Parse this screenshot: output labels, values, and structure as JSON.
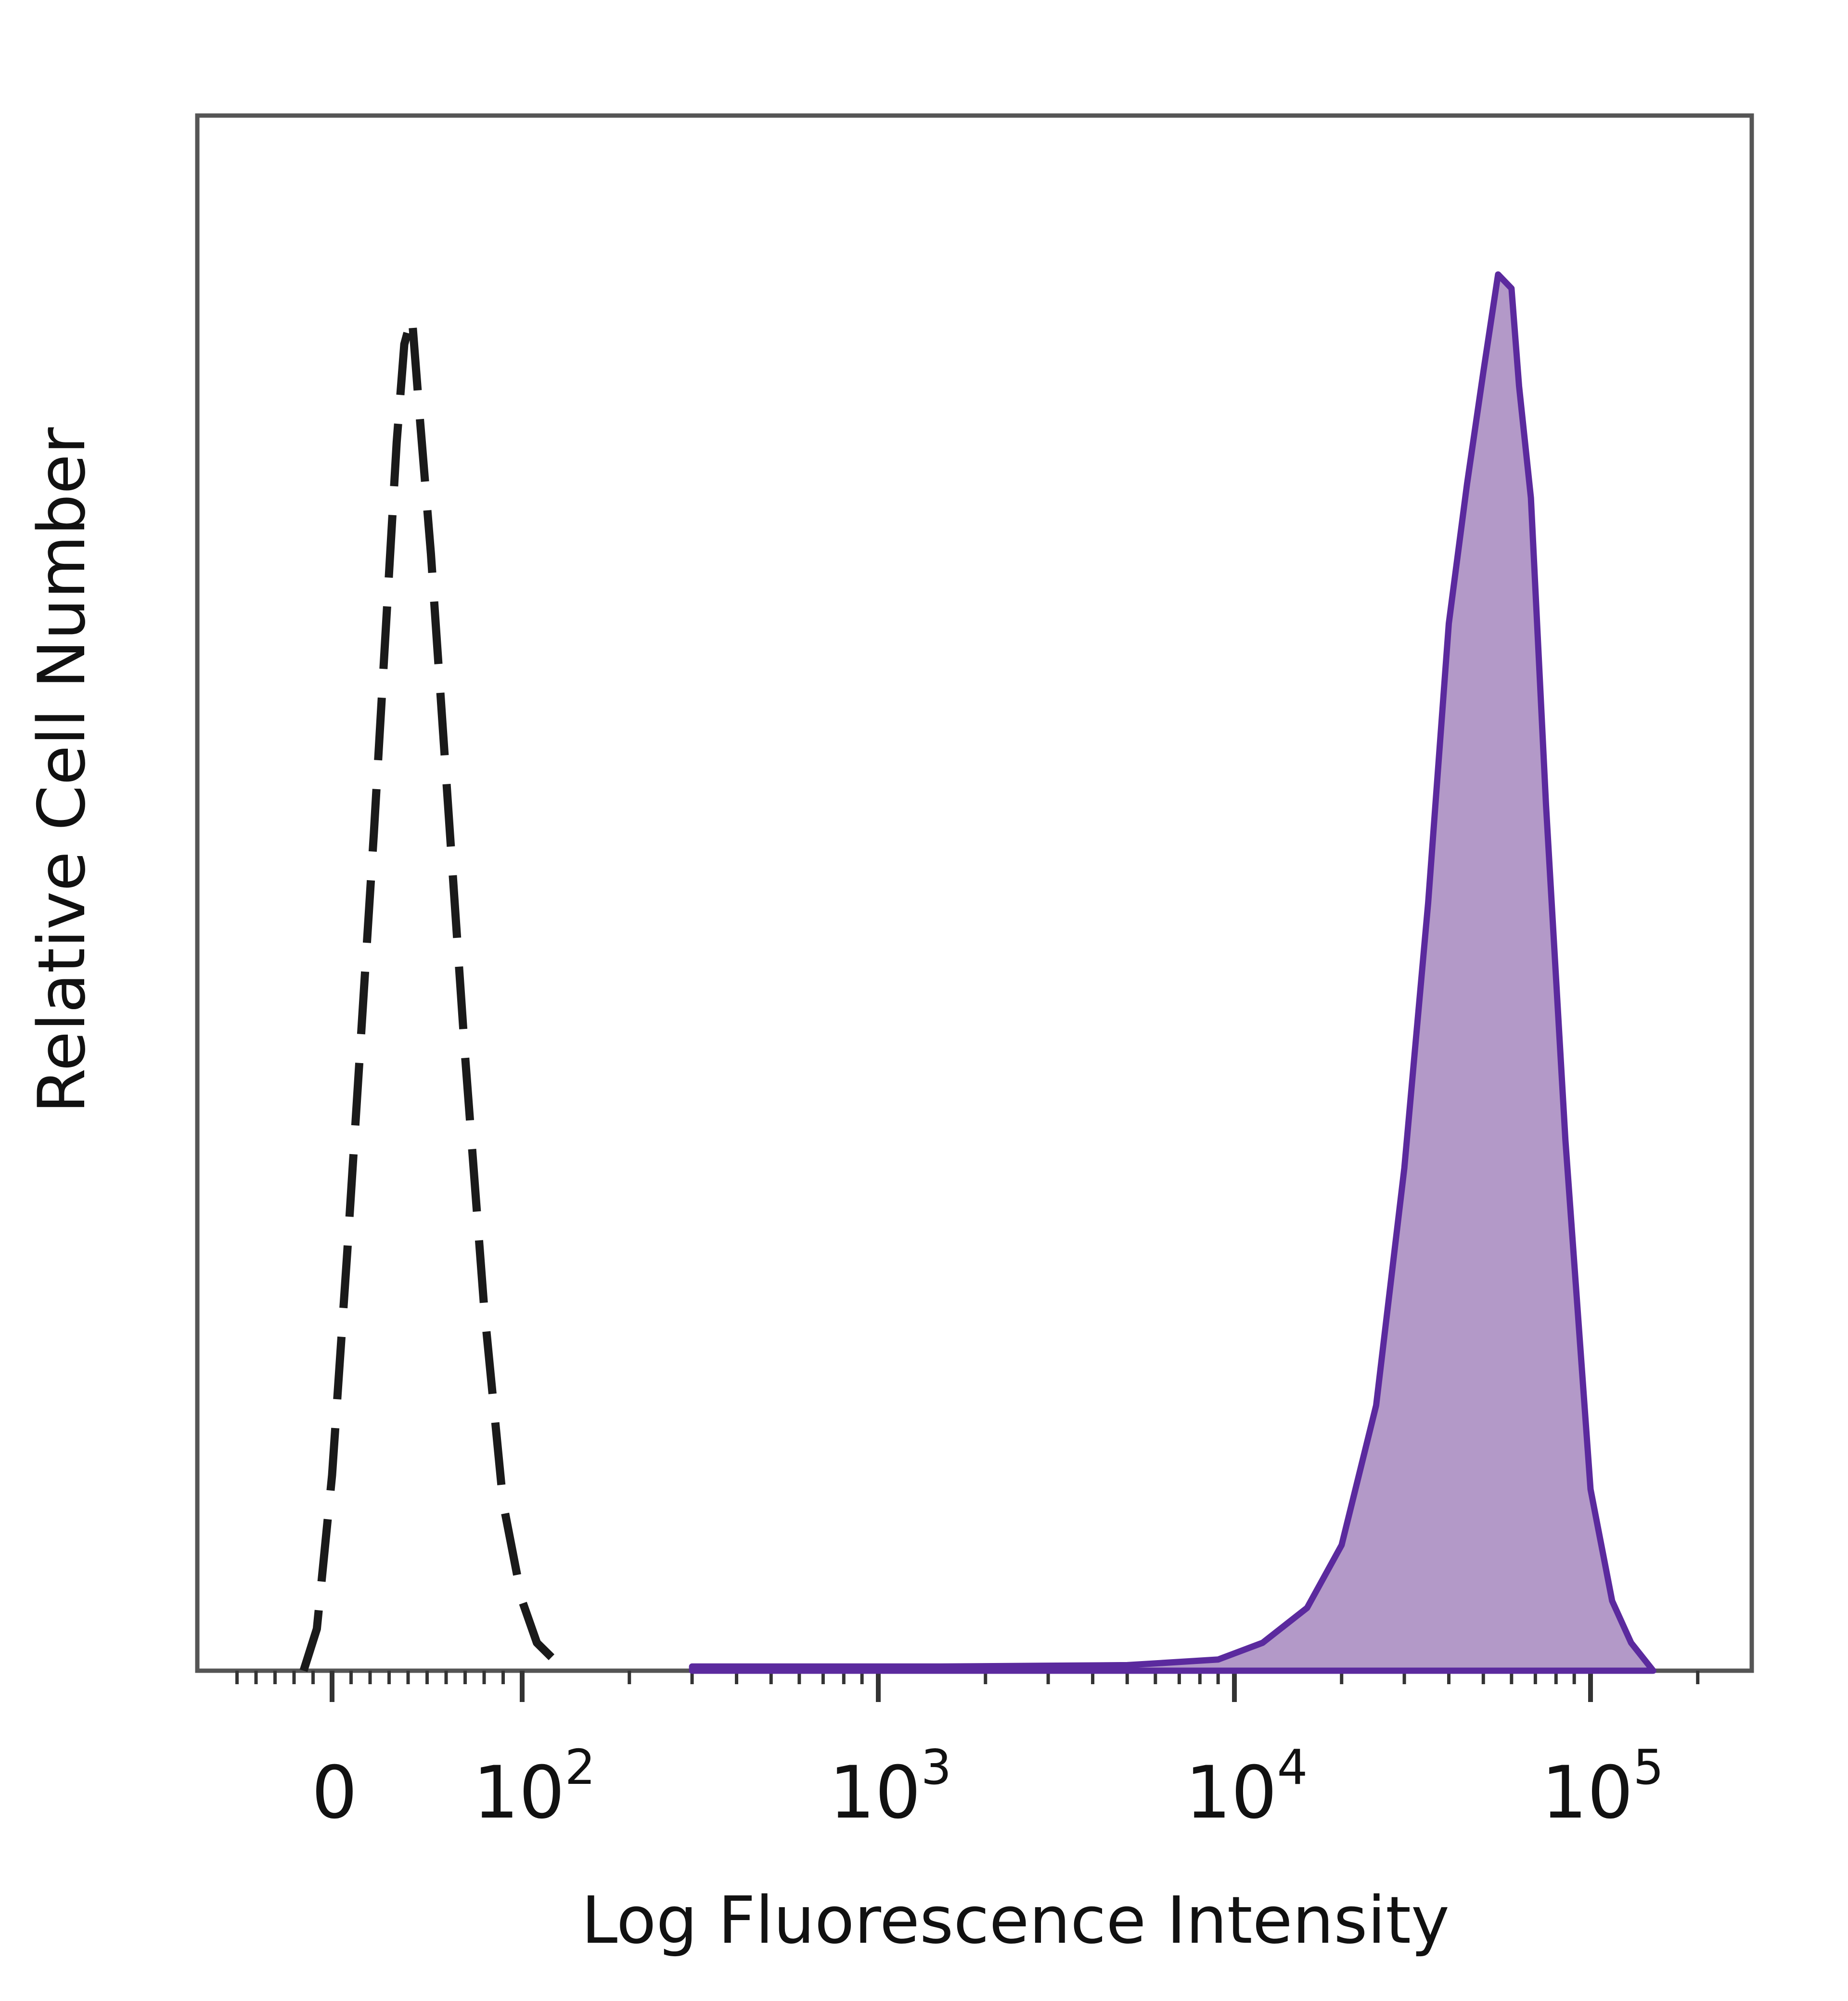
{
  "chart_data": {
    "type": "area",
    "title": "",
    "xlabel": "Log Fluorescence Intensity",
    "ylabel": "Relative Cell Number",
    "x_scale": "biexponential (linear around 0, log above 10^2)",
    "xlim": [
      -60,
      200000
    ],
    "ylim": [
      0,
      1.1
    ],
    "grid": false,
    "legend": "none",
    "x_ticks": [
      {
        "value": 0,
        "base": "0",
        "exp": ""
      },
      {
        "value": 100,
        "base": "10",
        "exp": "2"
      },
      {
        "value": 1000,
        "base": "10",
        "exp": "3"
      },
      {
        "value": 10000,
        "base": "10",
        "exp": "4"
      },
      {
        "value": 100000,
        "base": "10",
        "exp": "5"
      }
    ],
    "series": [
      {
        "style": "dashed-outline",
        "color": "#1a1a1a",
        "points": [
          [
            -15,
            0.0
          ],
          [
            -8,
            0.03
          ],
          [
            0,
            0.14
          ],
          [
            8,
            0.3
          ],
          [
            15,
            0.45
          ],
          [
            22,
            0.6
          ],
          [
            28,
            0.74
          ],
          [
            34,
            0.88
          ],
          [
            38,
            0.95
          ],
          [
            42,
            0.97
          ],
          [
            46,
            0.9
          ],
          [
            52,
            0.8
          ],
          [
            60,
            0.64
          ],
          [
            70,
            0.44
          ],
          [
            80,
            0.26
          ],
          [
            90,
            0.12
          ],
          [
            100,
            0.05
          ],
          [
            110,
            0.02
          ],
          [
            125,
            0.006
          ],
          [
            140,
            0.0
          ]
        ]
      },
      {
        "style": "filled",
        "color": "#5b2a9e",
        "fill": "#b399c8",
        "points": [
          [
            300,
            0.003
          ],
          [
            1500,
            0.003
          ],
          [
            5000,
            0.004
          ],
          [
            9000,
            0.008
          ],
          [
            12000,
            0.02
          ],
          [
            16000,
            0.045
          ],
          [
            20000,
            0.09
          ],
          [
            25000,
            0.19
          ],
          [
            30000,
            0.36
          ],
          [
            35000,
            0.55
          ],
          [
            40000,
            0.75
          ],
          [
            45000,
            0.85
          ],
          [
            50000,
            0.93
          ],
          [
            55000,
            1.0
          ],
          [
            60000,
            0.99
          ],
          [
            63000,
            0.92
          ],
          [
            68000,
            0.84
          ],
          [
            75000,
            0.62
          ],
          [
            85000,
            0.38
          ],
          [
            100000,
            0.13
          ],
          [
            115000,
            0.05
          ],
          [
            130000,
            0.02
          ],
          [
            150000,
            0.0
          ]
        ]
      }
    ]
  }
}
